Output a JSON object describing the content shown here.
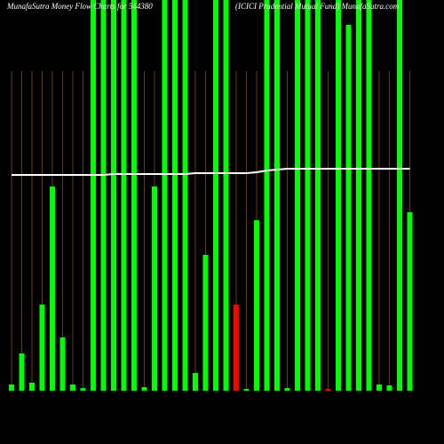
{
  "chart_data": {
    "type": "bar",
    "title": "MunafaSutra  Money Flow  Charts for 544380",
    "subtitle": "(ICICI Prudential Mutual Fund) MunafaSutra.com",
    "categories": [
      null,
      null,
      null,
      null,
      null,
      null,
      null,
      null,
      null,
      null,
      null,
      null,
      null,
      null,
      null,
      null,
      null,
      null,
      null,
      null,
      null,
      null,
      null,
      null,
      null,
      null,
      null,
      null,
      null,
      null,
      null,
      null,
      null,
      null,
      null,
      null,
      null,
      null,
      null,
      null
    ],
    "values": [
      7,
      42,
      9,
      97,
      230,
      60,
      7,
      3,
      440,
      440,
      440,
      440,
      440,
      4,
      230,
      440,
      440,
      440,
      20,
      153,
      440,
      440,
      97,
      2,
      192,
      440,
      440,
      3,
      440,
      440,
      440,
      2,
      440,
      412,
      440,
      440,
      7,
      6,
      440,
      201
    ],
    "colors": [
      "#00ff00",
      "#00ff00",
      "#00ff00",
      "#00ff00",
      "#00ff00",
      "#00ff00",
      "#00ff00",
      "#00ff00",
      "#00ff00",
      "#00ff00",
      "#00ff00",
      "#00ff00",
      "#00ff00",
      "#00ff00",
      "#00ff00",
      "#00ff00",
      "#00ff00",
      "#00ff00",
      "#00ff00",
      "#00ff00",
      "#00ff00",
      "#00ff00",
      "#ff0000",
      "#00ff00",
      "#00ff00",
      "#00ff00",
      "#00ff00",
      "#00ff00",
      "#00ff00",
      "#00ff00",
      "#00ff00",
      "#ff0000",
      "#00ff00",
      "#00ff00",
      "#00ff00",
      "#00ff00",
      "#00ff00",
      "#00ff00",
      "#00ff00",
      "#00ff00"
    ],
    "line": {
      "color": "#ffffff",
      "values": [
        243,
        243,
        243,
        243,
        243,
        243,
        243,
        243,
        243,
        243,
        244,
        244,
        244,
        244,
        244,
        244,
        244,
        244,
        245,
        245,
        245,
        245,
        245,
        245,
        246,
        248,
        249,
        250,
        250,
        250,
        250,
        250,
        250,
        250,
        250,
        250,
        250,
        250,
        250,
        250
      ]
    },
    "ylim": [
      0,
      440
    ],
    "grid": true,
    "grid_color": "#b8621b"
  }
}
